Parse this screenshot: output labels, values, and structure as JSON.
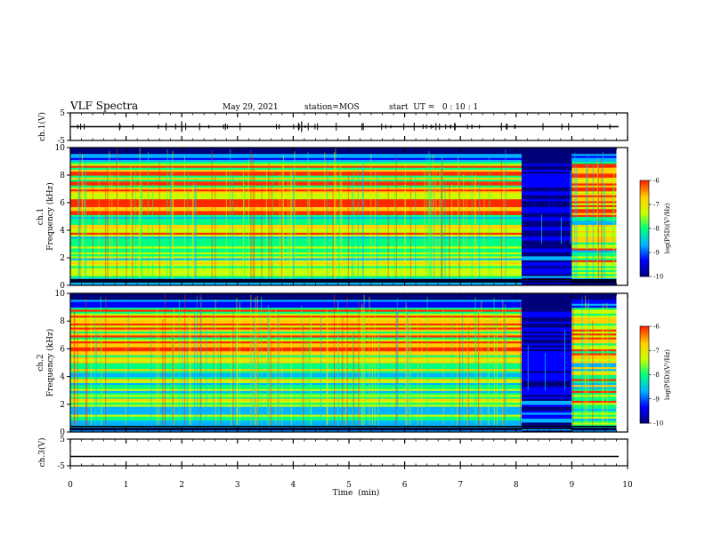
{
  "header": {
    "title": "VLF Spectra",
    "date": "May 29, 2021",
    "station": "station=MOS",
    "start": "start  UT =   0 : 10 : 1"
  },
  "colors": {
    "colormap": [
      "#00007a",
      "#0000ff",
      "#00b4ff",
      "#00ff80",
      "#c8ff00",
      "#ffd000",
      "#ff2a00"
    ],
    "frame": "#000000"
  },
  "chart_data": [
    {
      "type": "line",
      "ylabel": "ch.1(V)",
      "ylim": [
        -5,
        5
      ],
      "yticks": [
        "5",
        "-5"
      ],
      "x": [
        0,
        10
      ],
      "values": [
        0,
        0
      ]
    },
    {
      "type": "heatmap",
      "ylabel_lines": [
        "ch.1",
        "Frequency (kHz)"
      ],
      "ylim": [
        0,
        10
      ],
      "yticks": [
        "0",
        "2",
        "4",
        "6",
        "8",
        "10"
      ],
      "colorbar": {
        "label": "log(PSD)(V²/Hz)",
        "ticks": [
          "-6",
          "-7",
          "-8",
          "-9",
          "-10"
        ],
        "range": [
          -10,
          -6
        ]
      },
      "segments": [
        {
          "x": [
            0,
            8.1
          ],
          "state": "active"
        },
        {
          "x": [
            8.1,
            9.0
          ],
          "state": "quiet"
        },
        {
          "x": [
            9.0,
            9.8
          ],
          "state": "active"
        }
      ]
    },
    {
      "type": "heatmap",
      "ylabel_lines": [
        "ch.2",
        "Frequency (kHz)"
      ],
      "ylim": [
        0,
        10
      ],
      "yticks": [
        "0",
        "2",
        "4",
        "6",
        "8",
        "10"
      ],
      "colorbar": {
        "label": "log(PSD)(V²/Hz)",
        "ticks": [
          "-6",
          "-7",
          "-8",
          "-9",
          "-10"
        ],
        "range": [
          -10,
          -6
        ]
      },
      "segments": [
        {
          "x": [
            0,
            8.1
          ],
          "state": "active"
        },
        {
          "x": [
            8.1,
            9.0
          ],
          "state": "quiet"
        },
        {
          "x": [
            9.0,
            9.8
          ],
          "state": "active"
        }
      ]
    },
    {
      "type": "line",
      "ylabel": "ch.3(V)",
      "ylim": [
        -5,
        5
      ],
      "yticks": [
        "5",
        "-5"
      ],
      "x": [
        0,
        10
      ],
      "values": [
        -1.5,
        -1.5
      ]
    }
  ],
  "xaxis": {
    "label": "Time  (min)",
    "ticks": [
      "0",
      "1",
      "2",
      "3",
      "4",
      "5",
      "6",
      "7",
      "8",
      "9",
      "10"
    ],
    "xlim": [
      0,
      10
    ]
  }
}
